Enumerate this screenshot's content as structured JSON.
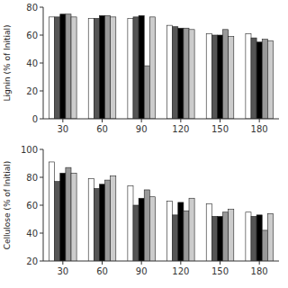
{
  "chart_data": [
    {
      "type": "bar",
      "y_label": "Lignin (% of Initial)",
      "categories": [
        30,
        60,
        90,
        120,
        150,
        180
      ],
      "series": [
        {
          "color": "white",
          "values": [
            73,
            72,
            72,
            67,
            61,
            61
          ]
        },
        {
          "color": "#555555",
          "values": [
            73,
            72,
            73,
            66,
            60,
            58
          ]
        },
        {
          "color": "black",
          "values": [
            75,
            74,
            74,
            65,
            60,
            55
          ]
        },
        {
          "color": "#999999",
          "values": [
            75,
            74,
            38,
            65,
            64,
            57
          ]
        },
        {
          "color": "#cccccc",
          "values": [
            73,
            73,
            73,
            64,
            59,
            56
          ]
        }
      ],
      "ylim": [
        0,
        80
      ],
      "yticks": [
        0,
        20,
        40,
        60,
        80
      ],
      "grid": false
    },
    {
      "type": "bar",
      "y_label": "Cellulose (% of Initial)",
      "categories": [
        30,
        60,
        90,
        120,
        150,
        180
      ],
      "series": [
        {
          "color": "white",
          "values": [
            91,
            79,
            74,
            63,
            61,
            55
          ]
        },
        {
          "color": "#555555",
          "values": [
            77,
            72,
            60,
            53,
            52,
            52
          ]
        },
        {
          "color": "black",
          "values": [
            83,
            75,
            65,
            62,
            52,
            53
          ]
        },
        {
          "color": "#999999",
          "values": [
            87,
            78,
            71,
            56,
            55,
            42
          ]
        },
        {
          "color": "#cccccc",
          "values": [
            83,
            81,
            66,
            65,
            57,
            54
          ]
        }
      ],
      "ylim": [
        20,
        100
      ],
      "yticks": [
        20,
        40,
        60,
        80,
        100
      ],
      "grid": false
    }
  ]
}
